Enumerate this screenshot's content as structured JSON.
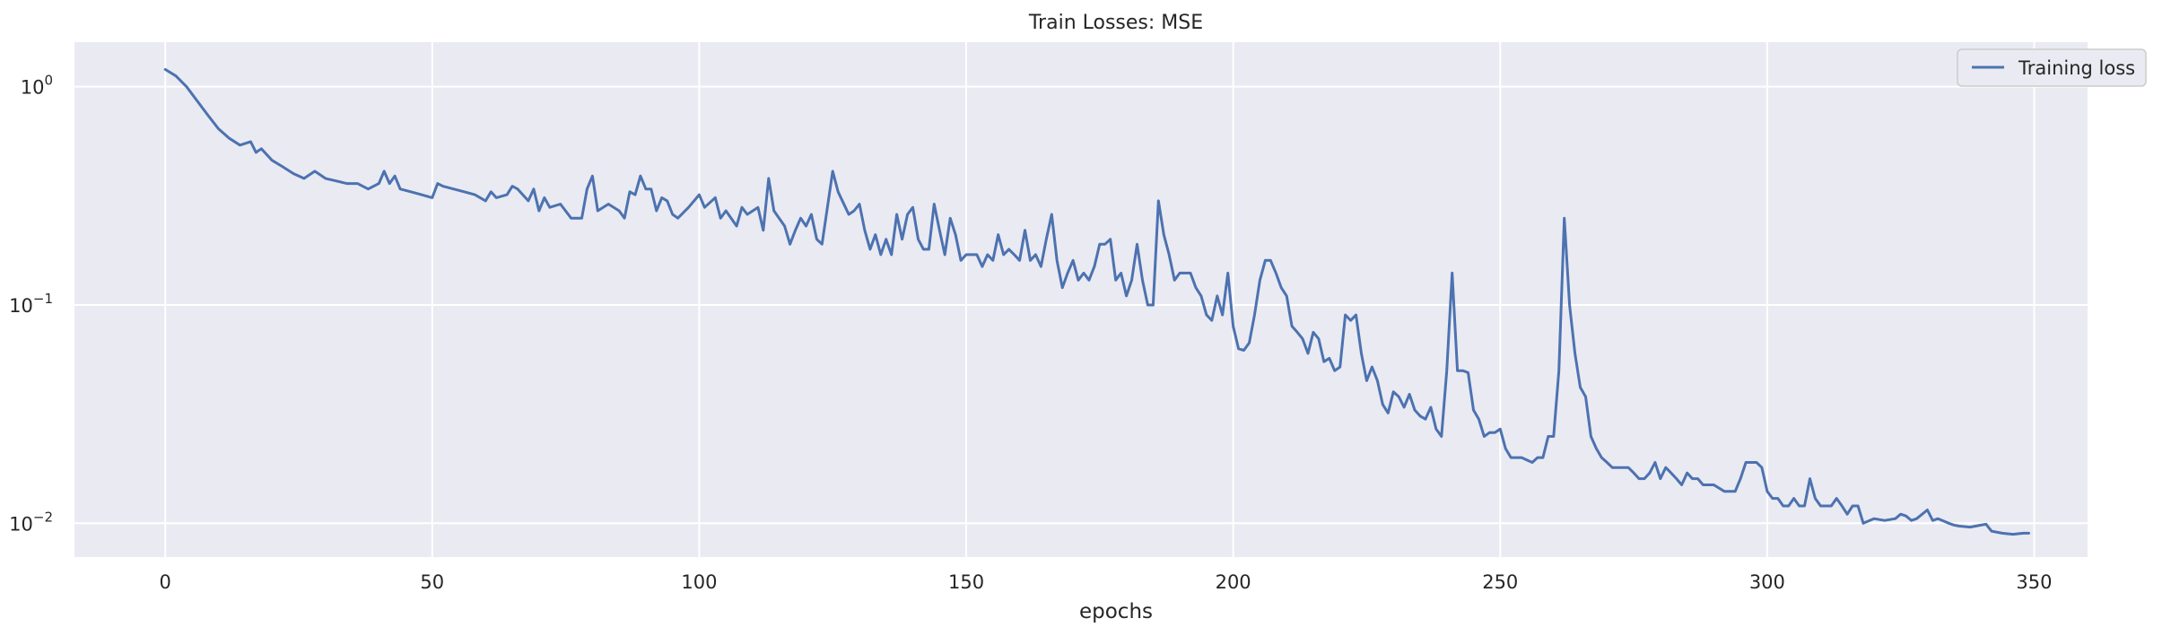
{
  "chart_data": {
    "type": "line",
    "title": "Train Losses:  MSE",
    "xlabel": "epochs",
    "ylabel": "",
    "yscale": "log",
    "xlim": [
      -17,
      360
    ],
    "ylim": [
      0.007,
      1.6
    ],
    "xticks": [
      0,
      50,
      100,
      150,
      200,
      250,
      300,
      350
    ],
    "yticks": [
      {
        "value": 1,
        "base": "10",
        "exp": "0"
      },
      {
        "value": 0.1,
        "base": "10",
        "exp": "−1"
      },
      {
        "value": 0.01,
        "base": "10",
        "exp": "−2"
      }
    ],
    "grid": true,
    "legend_position": "top-right",
    "series": [
      {
        "name": "Training loss",
        "color": "#4c72b0",
        "points": [
          [
            0,
            1.2
          ],
          [
            2,
            1.12
          ],
          [
            4,
            1.0
          ],
          [
            6,
            0.86
          ],
          [
            8,
            0.74
          ],
          [
            10,
            0.64
          ],
          [
            12,
            0.58
          ],
          [
            14,
            0.54
          ],
          [
            16,
            0.56
          ],
          [
            17,
            0.5
          ],
          [
            18,
            0.52
          ],
          [
            20,
            0.46
          ],
          [
            22,
            0.43
          ],
          [
            24,
            0.4
          ],
          [
            26,
            0.38
          ],
          [
            28,
            0.41
          ],
          [
            30,
            0.38
          ],
          [
            32,
            0.37
          ],
          [
            34,
            0.36
          ],
          [
            36,
            0.36
          ],
          [
            38,
            0.34
          ],
          [
            40,
            0.36
          ],
          [
            41,
            0.41
          ],
          [
            42,
            0.36
          ],
          [
            43,
            0.39
          ],
          [
            44,
            0.34
          ],
          [
            46,
            0.33
          ],
          [
            48,
            0.32
          ],
          [
            50,
            0.31
          ],
          [
            51,
            0.36
          ],
          [
            52,
            0.35
          ],
          [
            54,
            0.34
          ],
          [
            56,
            0.33
          ],
          [
            58,
            0.32
          ],
          [
            60,
            0.3
          ],
          [
            61,
            0.33
          ],
          [
            62,
            0.31
          ],
          [
            64,
            0.32
          ],
          [
            65,
            0.35
          ],
          [
            66,
            0.34
          ],
          [
            68,
            0.3
          ],
          [
            69,
            0.34
          ],
          [
            70,
            0.27
          ],
          [
            71,
            0.31
          ],
          [
            72,
            0.28
          ],
          [
            74,
            0.29
          ],
          [
            76,
            0.25
          ],
          [
            78,
            0.25
          ],
          [
            79,
            0.34
          ],
          [
            80,
            0.39
          ],
          [
            81,
            0.27
          ],
          [
            83,
            0.29
          ],
          [
            85,
            0.27
          ],
          [
            86,
            0.25
          ],
          [
            87,
            0.33
          ],
          [
            88,
            0.32
          ],
          [
            89,
            0.39
          ],
          [
            90,
            0.34
          ],
          [
            91,
            0.34
          ],
          [
            92,
            0.27
          ],
          [
            93,
            0.31
          ],
          [
            94,
            0.3
          ],
          [
            95,
            0.26
          ],
          [
            96,
            0.25
          ],
          [
            98,
            0.28
          ],
          [
            100,
            0.32
          ],
          [
            101,
            0.28
          ],
          [
            103,
            0.31
          ],
          [
            104,
            0.25
          ],
          [
            105,
            0.27
          ],
          [
            107,
            0.23
          ],
          [
            108,
            0.28
          ],
          [
            109,
            0.26
          ],
          [
            111,
            0.28
          ],
          [
            112,
            0.22
          ],
          [
            113,
            0.38
          ],
          [
            114,
            0.27
          ],
          [
            116,
            0.23
          ],
          [
            117,
            0.19
          ],
          [
            118,
            0.22
          ],
          [
            119,
            0.25
          ],
          [
            120,
            0.23
          ],
          [
            121,
            0.26
          ],
          [
            122,
            0.2
          ],
          [
            123,
            0.19
          ],
          [
            125,
            0.41
          ],
          [
            126,
            0.33
          ],
          [
            128,
            0.26
          ],
          [
            129,
            0.27
          ],
          [
            130,
            0.29
          ],
          [
            131,
            0.22
          ],
          [
            132,
            0.18
          ],
          [
            133,
            0.21
          ],
          [
            134,
            0.17
          ],
          [
            135,
            0.2
          ],
          [
            136,
            0.17
          ],
          [
            137,
            0.26
          ],
          [
            138,
            0.2
          ],
          [
            139,
            0.26
          ],
          [
            140,
            0.28
          ],
          [
            141,
            0.2
          ],
          [
            142,
            0.18
          ],
          [
            143,
            0.18
          ],
          [
            144,
            0.29
          ],
          [
            145,
            0.22
          ],
          [
            146,
            0.17
          ],
          [
            147,
            0.25
          ],
          [
            148,
            0.21
          ],
          [
            149,
            0.16
          ],
          [
            150,
            0.17
          ],
          [
            152,
            0.17
          ],
          [
            153,
            0.15
          ],
          [
            154,
            0.17
          ],
          [
            155,
            0.16
          ],
          [
            156,
            0.21
          ],
          [
            157,
            0.17
          ],
          [
            158,
            0.18
          ],
          [
            159,
            0.17
          ],
          [
            160,
            0.16
          ],
          [
            161,
            0.22
          ],
          [
            162,
            0.16
          ],
          [
            163,
            0.17
          ],
          [
            164,
            0.15
          ],
          [
            165,
            0.2
          ],
          [
            166,
            0.26
          ],
          [
            167,
            0.16
          ],
          [
            168,
            0.12
          ],
          [
            169,
            0.14
          ],
          [
            170,
            0.16
          ],
          [
            171,
            0.13
          ],
          [
            172,
            0.14
          ],
          [
            173,
            0.13
          ],
          [
            174,
            0.15
          ],
          [
            175,
            0.19
          ],
          [
            176,
            0.19
          ],
          [
            177,
            0.2
          ],
          [
            178,
            0.13
          ],
          [
            179,
            0.14
          ],
          [
            180,
            0.11
          ],
          [
            181,
            0.13
          ],
          [
            182,
            0.19
          ],
          [
            183,
            0.13
          ],
          [
            184,
            0.1
          ],
          [
            185,
            0.1
          ],
          [
            186,
            0.3
          ],
          [
            187,
            0.21
          ],
          [
            188,
            0.17
          ],
          [
            189,
            0.13
          ],
          [
            190,
            0.14
          ],
          [
            192,
            0.14
          ],
          [
            193,
            0.12
          ],
          [
            194,
            0.11
          ],
          [
            195,
            0.09
          ],
          [
            196,
            0.085
          ],
          [
            197,
            0.11
          ],
          [
            198,
            0.09
          ],
          [
            199,
            0.14
          ],
          [
            200,
            0.08
          ],
          [
            201,
            0.063
          ],
          [
            202,
            0.062
          ],
          [
            203,
            0.067
          ],
          [
            204,
            0.09
          ],
          [
            205,
            0.13
          ],
          [
            206,
            0.16
          ],
          [
            207,
            0.16
          ],
          [
            208,
            0.14
          ],
          [
            209,
            0.12
          ],
          [
            210,
            0.11
          ],
          [
            211,
            0.08
          ],
          [
            212,
            0.075
          ],
          [
            213,
            0.07
          ],
          [
            214,
            0.06
          ],
          [
            215,
            0.075
          ],
          [
            216,
            0.07
          ],
          [
            217,
            0.055
          ],
          [
            218,
            0.057
          ],
          [
            219,
            0.05
          ],
          [
            220,
            0.052
          ],
          [
            221,
            0.09
          ],
          [
            222,
            0.085
          ],
          [
            223,
            0.09
          ],
          [
            224,
            0.06
          ],
          [
            225,
            0.045
          ],
          [
            226,
            0.052
          ],
          [
            227,
            0.045
          ],
          [
            228,
            0.035
          ],
          [
            229,
            0.032
          ],
          [
            230,
            0.04
          ],
          [
            231,
            0.038
          ],
          [
            232,
            0.034
          ],
          [
            233,
            0.039
          ],
          [
            234,
            0.033
          ],
          [
            235,
            0.031
          ],
          [
            236,
            0.03
          ],
          [
            237,
            0.034
          ],
          [
            238,
            0.027
          ],
          [
            239,
            0.025
          ],
          [
            240,
            0.05
          ],
          [
            241,
            0.14
          ],
          [
            242,
            0.05
          ],
          [
            243,
            0.05
          ],
          [
            244,
            0.049
          ],
          [
            245,
            0.033
          ],
          [
            246,
            0.03
          ],
          [
            247,
            0.025
          ],
          [
            248,
            0.026
          ],
          [
            249,
            0.026
          ],
          [
            250,
            0.027
          ],
          [
            251,
            0.022
          ],
          [
            252,
            0.02
          ],
          [
            254,
            0.02
          ],
          [
            256,
            0.019
          ],
          [
            257,
            0.02
          ],
          [
            258,
            0.02
          ],
          [
            259,
            0.025
          ],
          [
            260,
            0.025
          ],
          [
            261,
            0.05
          ],
          [
            262,
            0.25
          ],
          [
            263,
            0.1
          ],
          [
            264,
            0.06
          ],
          [
            265,
            0.042
          ],
          [
            266,
            0.038
          ],
          [
            267,
            0.025
          ],
          [
            268,
            0.022
          ],
          [
            269,
            0.02
          ],
          [
            270,
            0.019
          ],
          [
            271,
            0.018
          ],
          [
            272,
            0.018
          ],
          [
            274,
            0.018
          ],
          [
            275,
            0.017
          ],
          [
            276,
            0.016
          ],
          [
            277,
            0.016
          ],
          [
            278,
            0.017
          ],
          [
            279,
            0.019
          ],
          [
            280,
            0.016
          ],
          [
            281,
            0.018
          ],
          [
            282,
            0.017
          ],
          [
            283,
            0.016
          ],
          [
            284,
            0.015
          ],
          [
            285,
            0.017
          ],
          [
            286,
            0.016
          ],
          [
            287,
            0.016
          ],
          [
            288,
            0.015
          ],
          [
            290,
            0.015
          ],
          [
            292,
            0.014
          ],
          [
            293,
            0.014
          ],
          [
            294,
            0.014
          ],
          [
            295,
            0.016
          ],
          [
            296,
            0.019
          ],
          [
            297,
            0.019
          ],
          [
            298,
            0.019
          ],
          [
            299,
            0.018
          ],
          [
            300,
            0.014
          ],
          [
            301,
            0.013
          ],
          [
            302,
            0.013
          ],
          [
            303,
            0.012
          ],
          [
            304,
            0.012
          ],
          [
            305,
            0.013
          ],
          [
            306,
            0.012
          ],
          [
            307,
            0.012
          ],
          [
            308,
            0.016
          ],
          [
            309,
            0.013
          ],
          [
            310,
            0.012
          ],
          [
            311,
            0.012
          ],
          [
            312,
            0.012
          ],
          [
            313,
            0.013
          ],
          [
            314,
            0.012
          ],
          [
            315,
            0.011
          ],
          [
            316,
            0.012
          ],
          [
            317,
            0.012
          ],
          [
            318,
            0.01
          ],
          [
            320,
            0.0105
          ],
          [
            322,
            0.0103
          ],
          [
            324,
            0.0105
          ],
          [
            325,
            0.011
          ],
          [
            326,
            0.0108
          ],
          [
            327,
            0.0103
          ],
          [
            328,
            0.0105
          ],
          [
            330,
            0.0115
          ],
          [
            331,
            0.0103
          ],
          [
            332,
            0.0105
          ],
          [
            334,
            0.01
          ],
          [
            335,
            0.0098
          ],
          [
            336,
            0.0097
          ],
          [
            338,
            0.0096
          ],
          [
            340,
            0.0098
          ],
          [
            341,
            0.0099
          ],
          [
            342,
            0.0092
          ],
          [
            344,
            0.009
          ],
          [
            346,
            0.0089
          ],
          [
            348,
            0.009
          ],
          [
            349,
            0.009
          ]
        ]
      }
    ]
  }
}
